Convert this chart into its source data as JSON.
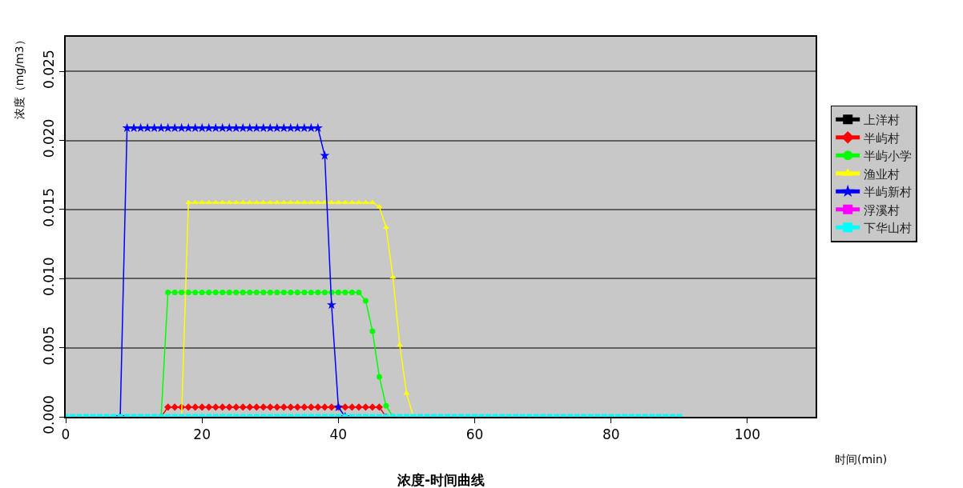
{
  "chart_data": {
    "type": "line",
    "title": "浓度-时间曲线",
    "xlabel": "时间(min)",
    "ylabel": "浓度（mg/m3）",
    "x": [
      0,
      1,
      2,
      3,
      4,
      5,
      6,
      7,
      8,
      9,
      10,
      11,
      12,
      13,
      14,
      15,
      16,
      17,
      18,
      19,
      20,
      21,
      22,
      23,
      24,
      25,
      26,
      27,
      28,
      29,
      30,
      31,
      32,
      33,
      34,
      35,
      36,
      37,
      38,
      39,
      40,
      41,
      42,
      43,
      44,
      45,
      46,
      47,
      48,
      49,
      50,
      51,
      52,
      53,
      54,
      55,
      56,
      57,
      58,
      59,
      60,
      61,
      62,
      63,
      64,
      65,
      66,
      67,
      68,
      69,
      70,
      71,
      72,
      73,
      74,
      75,
      76,
      77,
      78,
      79,
      80,
      81,
      82,
      83,
      84,
      85,
      86,
      87,
      88,
      89,
      90
    ],
    "xlim": [
      0,
      110
    ],
    "xticks": [
      0,
      20,
      40,
      60,
      80,
      100
    ],
    "ylim": [
      0,
      0.0275
    ],
    "yticks": [
      {
        "value": 0,
        "label": "0.000"
      },
      {
        "value": 0.005,
        "label": "0.005"
      },
      {
        "value": 0.01,
        "label": "0.010"
      },
      {
        "value": 0.015,
        "label": "0.015"
      },
      {
        "value": 0.02,
        "label": "0.020"
      },
      {
        "value": 0.025,
        "label": "0.025"
      }
    ],
    "grid": "y",
    "legend": "right",
    "line_style": "solid",
    "series": [
      {
        "name": "上洋村",
        "color": "#000000",
        "marker": "square",
        "values": [
          null,
          null,
          null,
          null,
          null,
          null,
          null,
          null,
          null,
          null,
          null,
          null,
          null,
          null,
          null,
          null,
          null,
          null,
          null,
          null,
          null,
          null,
          null,
          null,
          null,
          null,
          null,
          null,
          null,
          null,
          null,
          null,
          null,
          null,
          null,
          null,
          null,
          null,
          null,
          null,
          null,
          null,
          null,
          null,
          null,
          null,
          null,
          null,
          null,
          null,
          null,
          null,
          null,
          null,
          null,
          null,
          null,
          null,
          null,
          null,
          null,
          null,
          null,
          null,
          null,
          null,
          null,
          null,
          null,
          null,
          null,
          null,
          null,
          null,
          null,
          null,
          null,
          null,
          null,
          null,
          null,
          null,
          null,
          null,
          null,
          null,
          null,
          null,
          null,
          null,
          null
        ]
      },
      {
        "name": "半屿村",
        "color": "#ff0000",
        "marker": "diamond",
        "values": [
          null,
          null,
          null,
          null,
          null,
          null,
          null,
          null,
          null,
          null,
          null,
          null,
          null,
          null,
          0,
          0.0007,
          0.0007,
          0.0007,
          0.0007,
          0.0007,
          0.0007,
          0.0007,
          0.0007,
          0.0007,
          0.0007,
          0.0007,
          0.0007,
          0.0007,
          0.0007,
          0.0007,
          0.0007,
          0.0007,
          0.0007,
          0.0007,
          0.0007,
          0.0007,
          0.0007,
          0.0007,
          0.0007,
          0.0007,
          0.0007,
          0.0007,
          0.0007,
          0.0007,
          0.0007,
          0.0007,
          0.0007,
          0,
          null,
          null,
          null,
          null,
          null,
          null,
          null,
          null,
          null,
          null,
          null,
          null,
          null,
          null,
          null,
          null,
          null,
          null,
          null,
          null,
          null,
          null,
          null,
          null,
          null,
          null,
          null,
          null,
          null,
          null,
          null,
          null,
          null,
          null,
          null,
          null,
          null,
          null,
          null,
          null,
          null,
          null,
          null
        ]
      },
      {
        "name": "半屿小学",
        "color": "#00ff00",
        "marker": "circle",
        "values": [
          null,
          null,
          null,
          null,
          null,
          null,
          null,
          null,
          null,
          null,
          null,
          null,
          null,
          null,
          0,
          0.009,
          0.009,
          0.009,
          0.009,
          0.009,
          0.009,
          0.009,
          0.009,
          0.009,
          0.009,
          0.009,
          0.009,
          0.009,
          0.009,
          0.009,
          0.009,
          0.009,
          0.009,
          0.009,
          0.009,
          0.009,
          0.009,
          0.009,
          0.009,
          0.009,
          0.009,
          0.009,
          0.009,
          0.009,
          0.0084,
          0.0062,
          0.0029,
          0.0008,
          0,
          null,
          null,
          null,
          null,
          null,
          null,
          null,
          null,
          null,
          null,
          null,
          null,
          null,
          null,
          null,
          null,
          null,
          null,
          null,
          null,
          null,
          null,
          null,
          null,
          null,
          null,
          null,
          null,
          null,
          null,
          null,
          null,
          null,
          null,
          null,
          null,
          null,
          null,
          null,
          null,
          null,
          null
        ]
      },
      {
        "name": "渔业村",
        "color": "#ffff00",
        "marker": "triangle",
        "values": [
          null,
          null,
          null,
          null,
          null,
          null,
          null,
          null,
          null,
          null,
          null,
          null,
          null,
          null,
          null,
          null,
          null,
          0,
          0.0155,
          0.0155,
          0.0155,
          0.0155,
          0.0155,
          0.0155,
          0.0155,
          0.0155,
          0.0155,
          0.0155,
          0.0155,
          0.0155,
          0.0155,
          0.0155,
          0.0155,
          0.0155,
          0.0155,
          0.0155,
          0.0155,
          0.0155,
          0.0155,
          0.0155,
          0.0155,
          0.0155,
          0.0155,
          0.0155,
          0.0155,
          0.0155,
          0.0152,
          0.0137,
          0.0101,
          0.0052,
          0.0017,
          0,
          null,
          null,
          null,
          null,
          null,
          null,
          null,
          null,
          null,
          null,
          null,
          null,
          null,
          null,
          null,
          null,
          null,
          null,
          null,
          null,
          null,
          null,
          null,
          null,
          null,
          null,
          null,
          null,
          null,
          null,
          null,
          null,
          null,
          null,
          null,
          null,
          null,
          null,
          null
        ]
      },
      {
        "name": "半屿新村",
        "color": "#0000ff",
        "marker": "star",
        "values": [
          null,
          null,
          null,
          null,
          null,
          null,
          null,
          null,
          0,
          0.0209,
          0.0209,
          0.0209,
          0.0209,
          0.0209,
          0.0209,
          0.0209,
          0.0209,
          0.0209,
          0.0209,
          0.0209,
          0.0209,
          0.0209,
          0.0209,
          0.0209,
          0.0209,
          0.0209,
          0.0209,
          0.0209,
          0.0209,
          0.0209,
          0.0209,
          0.0209,
          0.0209,
          0.0209,
          0.0209,
          0.0209,
          0.0209,
          0.0209,
          0.0189,
          0.0081,
          0.0007,
          0,
          null,
          null,
          null,
          null,
          null,
          null,
          null,
          null,
          null,
          null,
          null,
          null,
          null,
          null,
          null,
          null,
          null,
          null,
          null,
          null,
          null,
          null,
          null,
          null,
          null,
          null,
          null,
          null,
          null,
          null,
          null,
          null,
          null,
          null,
          null,
          null,
          null,
          null,
          null,
          null,
          null,
          null,
          null,
          null,
          null,
          null,
          null,
          null,
          null
        ]
      },
      {
        "name": "浮溪村",
        "color": "#ff00ff",
        "marker": "square",
        "values": [
          null,
          null,
          null,
          null,
          null,
          null,
          null,
          null,
          null,
          null,
          null,
          null,
          null,
          null,
          null,
          null,
          null,
          null,
          null,
          null,
          null,
          null,
          null,
          null,
          null,
          null,
          null,
          null,
          null,
          null,
          null,
          null,
          null,
          null,
          null,
          null,
          null,
          null,
          null,
          null,
          null,
          null,
          null,
          null,
          null,
          null,
          null,
          null,
          null,
          null,
          null,
          null,
          null,
          null,
          null,
          null,
          null,
          null,
          null,
          null,
          null,
          null,
          null,
          null,
          null,
          null,
          null,
          null,
          null,
          null,
          null,
          null,
          null,
          null,
          null,
          null,
          null,
          null,
          null,
          null,
          null,
          null,
          null,
          null,
          null,
          null,
          null,
          null,
          null,
          null,
          null
        ]
      },
      {
        "name": "下华山村",
        "color": "#00ffff",
        "marker": "square",
        "values": [
          0,
          0,
          0,
          0,
          0,
          0,
          0,
          0,
          0,
          0,
          0,
          0,
          0,
          0,
          0,
          0,
          0,
          0,
          0,
          0,
          0,
          0,
          0,
          0,
          0,
          0,
          0,
          0,
          0,
          0,
          0,
          0,
          0,
          0,
          0,
          0,
          0,
          0,
          0,
          0,
          0,
          0,
          0,
          0,
          0,
          0,
          0,
          0,
          0,
          0,
          0,
          0,
          0,
          0,
          0,
          0,
          0,
          0,
          0,
          0,
          0,
          0,
          0,
          0,
          0,
          0,
          0,
          0,
          0,
          0,
          0,
          0,
          0,
          0,
          0,
          0,
          0,
          0,
          0,
          0,
          0,
          0,
          0,
          0,
          0,
          0,
          0,
          0,
          0,
          0,
          0
        ]
      }
    ]
  }
}
